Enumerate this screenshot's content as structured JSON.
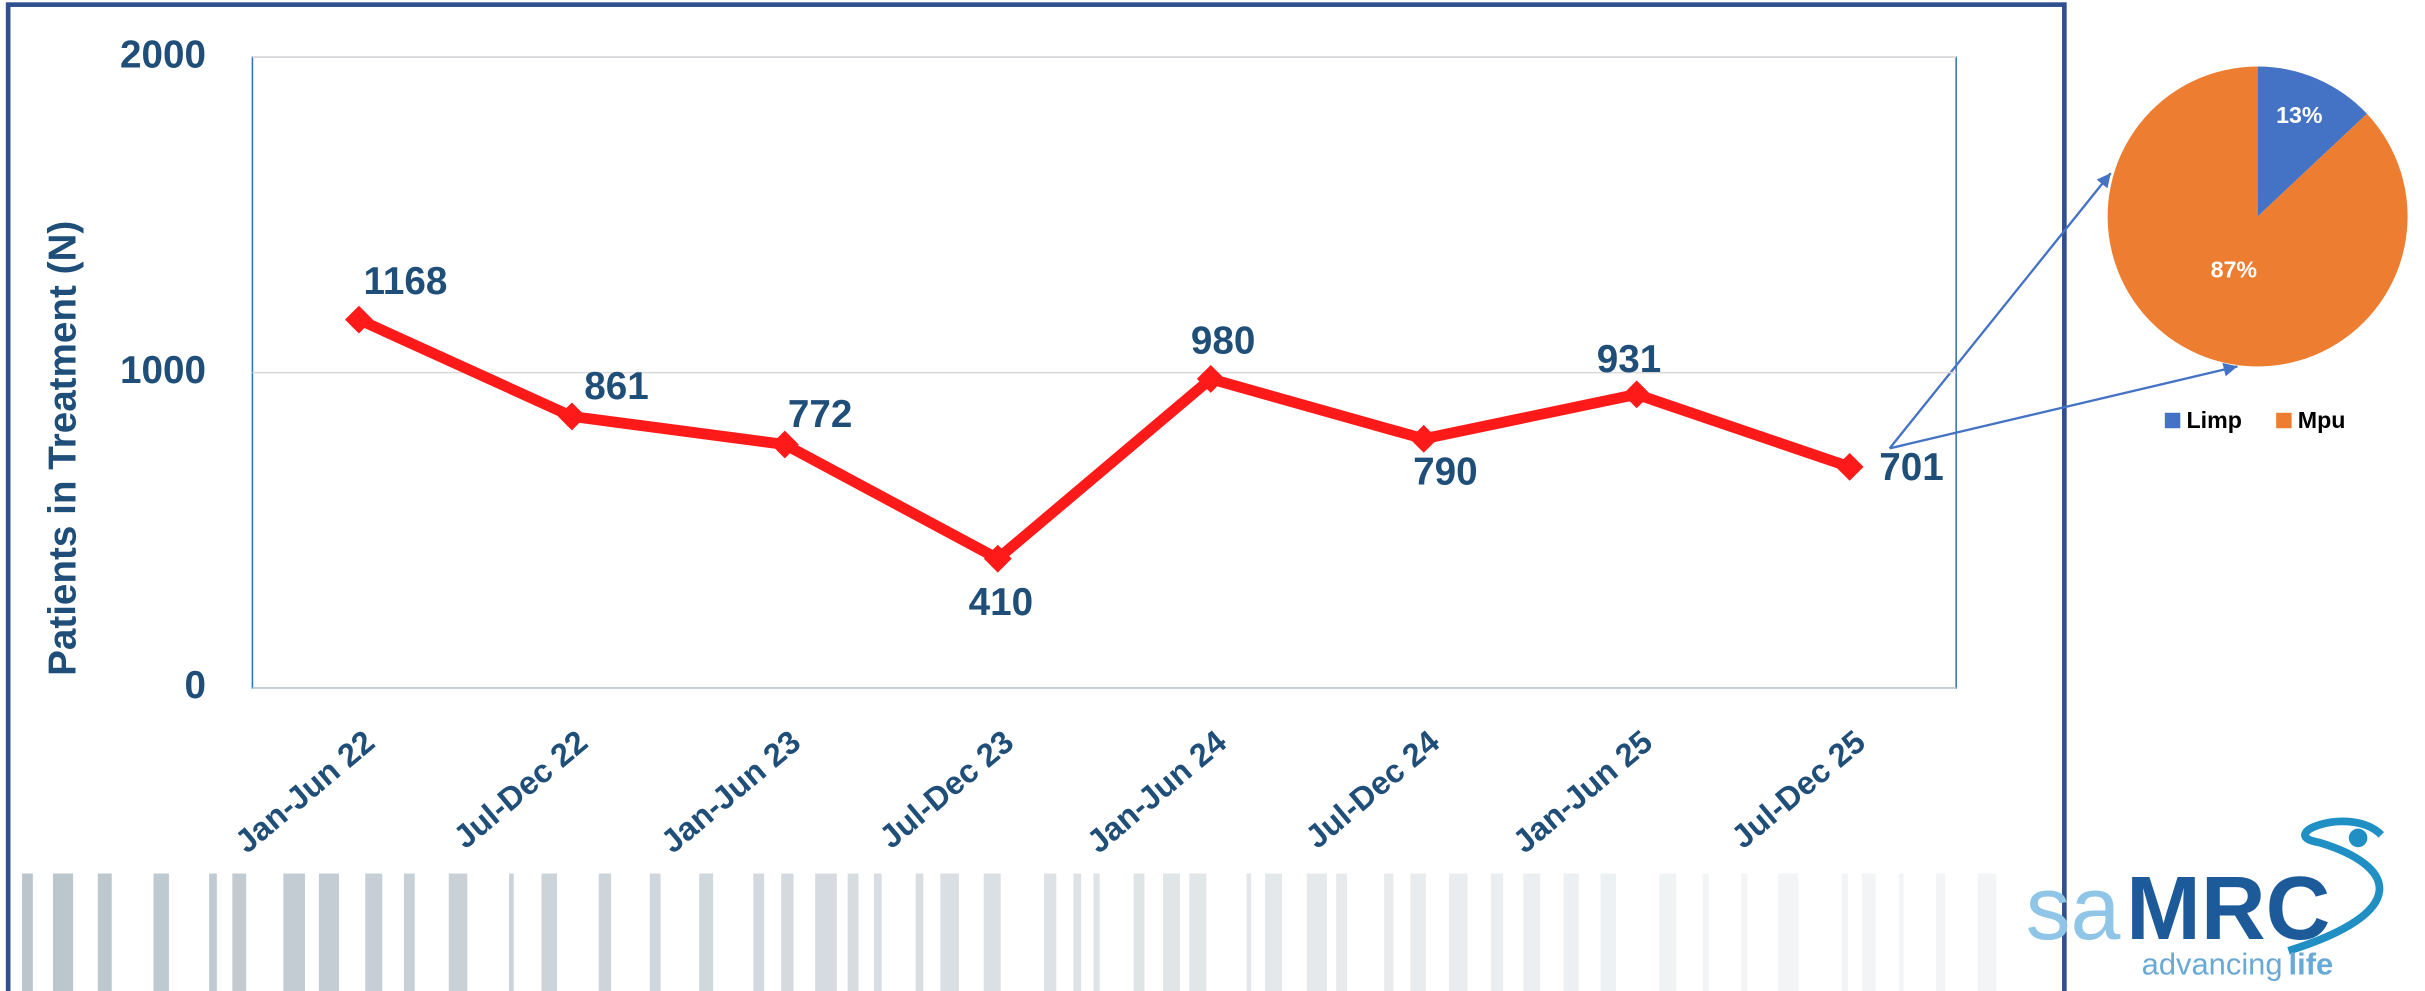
{
  "chart_data": [
    {
      "type": "line",
      "y_label": "Patients in Treatment (N)",
      "categories": [
        "Jan-Jun 22",
        "Jul-Dec 22",
        "Jan-Jun 23",
        "Jul-Dec 23",
        "Jan-Jun 24",
        "Jul-Dec 24",
        "Jan-Jun 25",
        "Jul-Dec 25"
      ],
      "values": [
        1168,
        861,
        772,
        410,
        980,
        790,
        931,
        701
      ],
      "color": "#ff1a1a",
      "ylim": [
        0,
        2000
      ],
      "yticks": [
        0,
        1000,
        2000
      ],
      "grid": true
    },
    {
      "type": "pie",
      "categories": [
        "Limp",
        "Mpu"
      ],
      "values": [
        13,
        87
      ],
      "value_labels": [
        "13%",
        "87%"
      ],
      "colors": [
        "#4472c4",
        "#ed7d31"
      ],
      "legend": "bottom"
    }
  ],
  "logo": {
    "prefix": "sa",
    "name": "MRC",
    "tagline_prefix": "advancing",
    "tagline": "life"
  }
}
